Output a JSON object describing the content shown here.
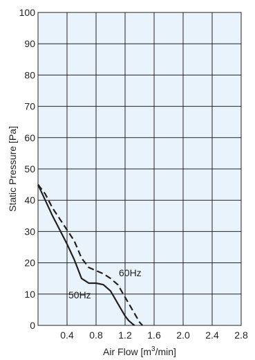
{
  "chart_data": {
    "type": "line",
    "xlabel_main": "Air Flow [m",
    "xlabel_sup": "3",
    "xlabel_tail": "/min]",
    "ylabel": "Static Pressure [Pa]",
    "xlim": [
      0,
      2.8
    ],
    "ylim": [
      0,
      100
    ],
    "x_ticks": [
      0.4,
      0.8,
      1.2,
      1.6,
      2.0,
      2.4,
      2.8
    ],
    "x_tick_labels": [
      "0.4",
      "0.8",
      "1.2",
      "1.6",
      "2.0",
      "2.4",
      "2.8"
    ],
    "y_ticks": [
      0,
      10,
      20,
      30,
      40,
      50,
      60,
      70,
      80,
      90,
      100
    ],
    "y_tick_labels": [
      "0",
      "10",
      "20",
      "30",
      "40",
      "50",
      "60",
      "70",
      "80",
      "90",
      "100"
    ],
    "grid": true,
    "background_color": "#e9f3fb",
    "line_color": "#231f20",
    "series": [
      {
        "name": "50Hz",
        "style": "solid",
        "x": [
          0.0,
          0.1,
          0.2,
          0.3,
          0.4,
          0.5,
          0.6,
          0.7,
          0.8,
          0.9,
          1.0,
          1.1,
          1.2,
          1.25,
          1.3,
          1.33
        ],
        "y": [
          45,
          40,
          35,
          30.5,
          26,
          21,
          15,
          13.5,
          13.5,
          13,
          11,
          7,
          3,
          1.5,
          0.5,
          0
        ]
      },
      {
        "name": "60Hz",
        "style": "dashed",
        "x": [
          0.0,
          0.1,
          0.2,
          0.3,
          0.4,
          0.5,
          0.6,
          0.7,
          0.8,
          0.9,
          1.0,
          1.1,
          1.2,
          1.3,
          1.4,
          1.44
        ],
        "y": [
          45,
          42,
          37.5,
          34,
          30.5,
          27,
          21.5,
          18.5,
          17.5,
          16.5,
          15,
          13,
          9,
          5,
          1,
          0
        ]
      }
    ]
  }
}
